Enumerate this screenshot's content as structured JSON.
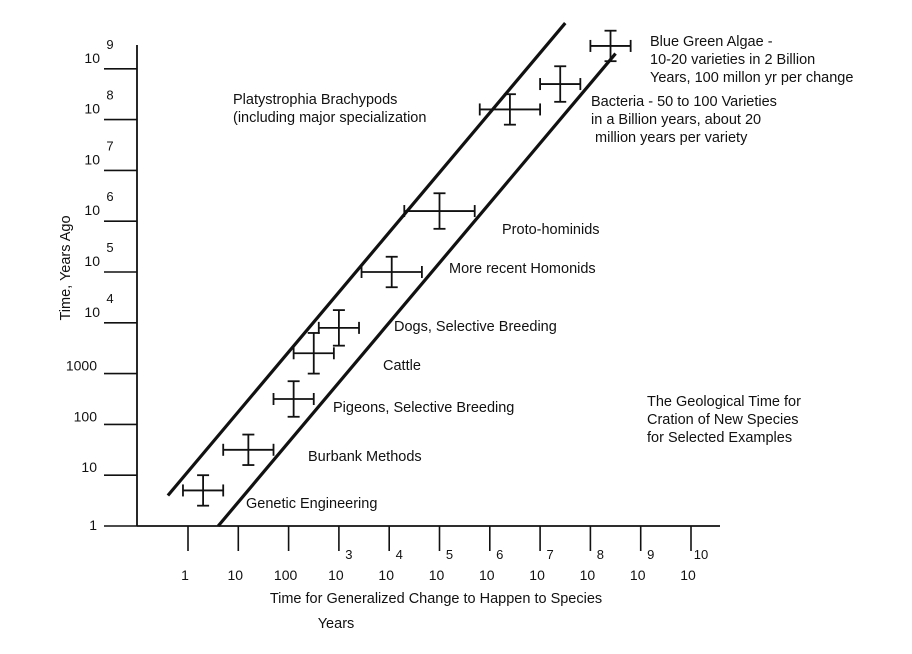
{
  "chart_data": {
    "type": "scatter",
    "title": "",
    "xlabel": "Time for Generalized Change to Happen to Species",
    "xunit": "Years",
    "ylabel": "Time, Years Ago",
    "x_scale": "log10",
    "y_scale": "log10",
    "xlim_log10": [
      -0.1,
      10.3
    ],
    "ylim_log10": [
      0,
      9.3
    ],
    "x_ticks": [
      {
        "base": "1",
        "exp": ""
      },
      {
        "base": "10",
        "exp": ""
      },
      {
        "base": "100",
        "exp": ""
      },
      {
        "base": "10",
        "exp": "3"
      },
      {
        "base": "10",
        "exp": "4"
      },
      {
        "base": "10",
        "exp": "5"
      },
      {
        "base": "10",
        "exp": "6"
      },
      {
        "base": "10",
        "exp": "7"
      },
      {
        "base": "10",
        "exp": "8"
      },
      {
        "base": "10",
        "exp": "9"
      },
      {
        "base": "10",
        "exp": "10"
      }
    ],
    "y_ticks": [
      {
        "base": "1",
        "exp": ""
      },
      {
        "base": "10",
        "exp": ""
      },
      {
        "base": "100",
        "exp": ""
      },
      {
        "base": "1000",
        "exp": ""
      },
      {
        "base": "10",
        "exp": "4"
      },
      {
        "base": "10",
        "exp": "5"
      },
      {
        "base": "10",
        "exp": "6"
      },
      {
        "base": "10",
        "exp": "7"
      },
      {
        "base": "10",
        "exp": "8"
      },
      {
        "base": "10",
        "exp": "9"
      }
    ],
    "band_lines": [
      {
        "x1": -0.4,
        "y1": 0.6,
        "x2": 7.5,
        "y2": 9.9
      },
      {
        "x1": 0.6,
        "y1": 0.0,
        "x2": 8.5,
        "y2": 9.3
      }
    ],
    "points": [
      {
        "label": "Genetic Engineering",
        "x": 0.3,
        "y": 0.7,
        "x_err": 0.4,
        "y_err": 0.3,
        "label_side": "lower-right"
      },
      {
        "label": "Burbank Methods",
        "x": 1.2,
        "y": 1.5,
        "x_err": 0.5,
        "y_err": 0.3,
        "label_side": "lower-right"
      },
      {
        "label": "Pigeons, Selective Breeding",
        "x": 2.1,
        "y": 2.5,
        "x_err": 0.4,
        "y_err": 0.35,
        "label_side": "lower-right"
      },
      {
        "label": "Cattle",
        "x": 2.5,
        "y": 3.4,
        "x_err": 0.4,
        "y_err": 0.4,
        "label_side": "lower-right"
      },
      {
        "label": "Dogs, Selective Breeding",
        "x": 3.0,
        "y": 3.9,
        "x_err": 0.4,
        "y_err": 0.35,
        "label_side": "right"
      },
      {
        "label": "More recent Homonids",
        "x": 4.05,
        "y": 5.0,
        "x_err": 0.6,
        "y_err": 0.3,
        "label_side": "right"
      },
      {
        "label": "Proto-hominids",
        "x": 5.0,
        "y": 6.2,
        "x_err": 0.7,
        "y_err": 0.35,
        "label_side": "lower-right"
      },
      {
        "label": "Platystrophia Brachypods\n(including major specialization",
        "x": 6.4,
        "y": 8.2,
        "x_err": 0.6,
        "y_err": 0.3,
        "label_side": "left"
      },
      {
        "label": "Bacteria - 50 to 100 Varieties\nin a Billion years, about 20\n million years per variety",
        "x": 7.4,
        "y": 8.7,
        "x_err": 0.4,
        "y_err": 0.35,
        "label_side": "lower-right"
      },
      {
        "label": "Blue Green Algae -\n10-20 varieties in 2 Billion\nYears, 100 millon yr per change",
        "x": 8.4,
        "y": 9.45,
        "x_err": 0.4,
        "y_err": 0.3,
        "label_side": "right"
      }
    ],
    "annotation": "The Geological Time for\nCration of New Species\nfor Selected Examples",
    "grid": false,
    "legend": "none"
  }
}
